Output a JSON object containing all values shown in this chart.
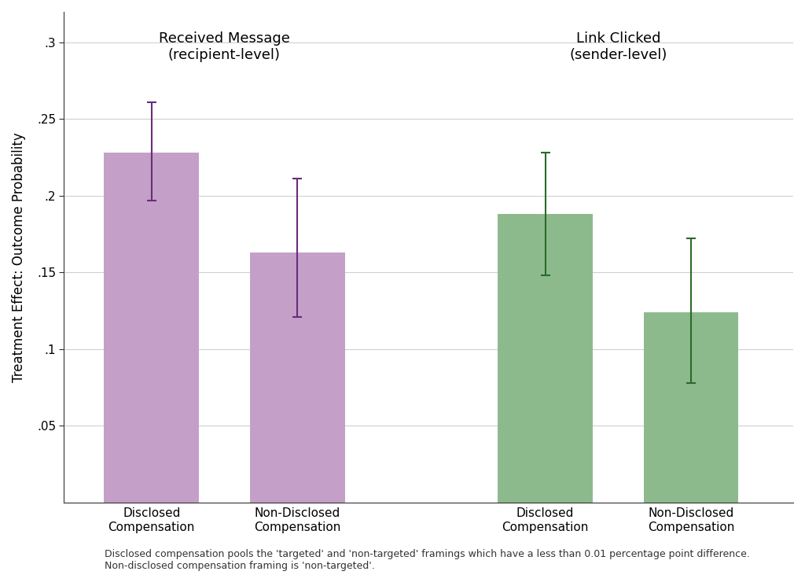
{
  "bars": [
    {
      "x": 1,
      "height": 0.228,
      "color": "#c4a0c8",
      "err_low": 0.031,
      "err_high": 0.033,
      "err_color": "#6a2c7a"
    },
    {
      "x": 2,
      "height": 0.163,
      "color": "#c4a0c8",
      "err_low": 0.042,
      "err_high": 0.048,
      "err_color": "#6a2c7a"
    },
    {
      "x": 3.7,
      "height": 0.188,
      "color": "#8dba8d",
      "err_low": 0.04,
      "err_high": 0.04,
      "err_color": "#2a6a2a"
    },
    {
      "x": 4.7,
      "height": 0.124,
      "color": "#8dba8d",
      "err_low": 0.046,
      "err_high": 0.048,
      "err_color": "#2a6a2a"
    }
  ],
  "bar_width": 0.65,
  "group_labels": [
    {
      "x": 1.5,
      "text": "Received Message\n(recipient-level)"
    },
    {
      "x": 4.2,
      "text": "Link Clicked\n(sender-level)"
    }
  ],
  "xtick_positions": [
    1,
    2,
    3.7,
    4.7
  ],
  "xtick_labels": [
    "Disclosed\nCompensation",
    "Non-Disclosed\nCompensation",
    "Disclosed\nCompensation",
    "Non-Disclosed\nCompensation"
  ],
  "ylabel": "Treatment Effect: Outcome Probability",
  "ylim": [
    0,
    0.32
  ],
  "yticks": [
    0.05,
    0.1,
    0.15,
    0.2,
    0.25,
    0.3
  ],
  "ytick_labels": [
    ".05",
    ".1",
    ".15",
    ".2",
    ".25",
    ".3"
  ],
  "grid_color": "#d0d0d0",
  "background_color": "#ffffff",
  "footnote": "Disclosed compensation pools the 'targeted' and 'non-targeted' framings which have a less than 0.01 percentage point difference.\nNon-disclosed compensation framing is 'non-targeted'.",
  "footnote_fontsize": 9,
  "ylabel_fontsize": 12,
  "xtick_fontsize": 11,
  "ytick_fontsize": 11,
  "group_label_fontsize": 13,
  "xlim": [
    0.4,
    5.4
  ]
}
